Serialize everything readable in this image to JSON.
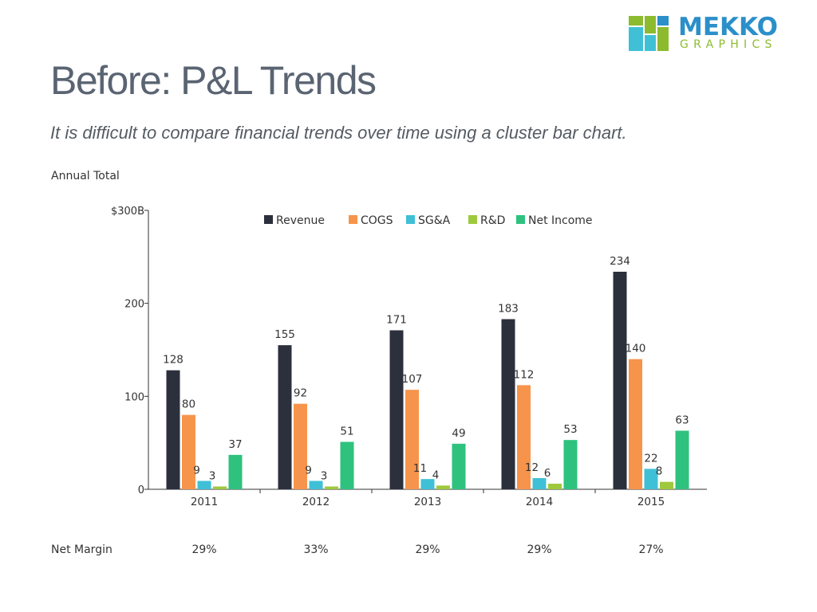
{
  "logo": {
    "line1": "MEKKO",
    "line2": "GRAPHICS"
  },
  "header": {
    "title": "Before: P&L Trends",
    "subtitle": "It is difficult to compare financial trends over time using a cluster bar chart."
  },
  "chart_data": {
    "type": "bar",
    "title": "Before: P&L Trends",
    "subtitle": "It is difficult to compare financial trends over time using a cluster bar chart.",
    "ylabel": "Annual Total",
    "xlabel": "",
    "ylim": [
      0,
      300
    ],
    "yticks": [
      0,
      100,
      200,
      300
    ],
    "ytick_labels": [
      "0",
      "100",
      "200",
      "$300B"
    ],
    "categories": [
      "2011",
      "2012",
      "2013",
      "2014",
      "2015"
    ],
    "series": [
      {
        "name": "Revenue",
        "color": "#2c2f3c",
        "values": [
          128,
          155,
          171,
          183,
          234
        ]
      },
      {
        "name": "COGS",
        "color": "#f7944b",
        "values": [
          80,
          92,
          107,
          112,
          140
        ]
      },
      {
        "name": "SG&A",
        "color": "#3fc0d6",
        "values": [
          9,
          9,
          11,
          12,
          22
        ]
      },
      {
        "name": "R&D",
        "color": "#9fc93c",
        "values": [
          3,
          3,
          4,
          6,
          8
        ]
      },
      {
        "name": "Net Income",
        "color": "#2ec27e",
        "values": [
          37,
          51,
          49,
          53,
          63
        ]
      }
    ],
    "legend": "top",
    "grid": false
  },
  "net_margin": {
    "label": "Net Margin",
    "values": [
      "29%",
      "33%",
      "29%",
      "29%",
      "27%"
    ]
  }
}
